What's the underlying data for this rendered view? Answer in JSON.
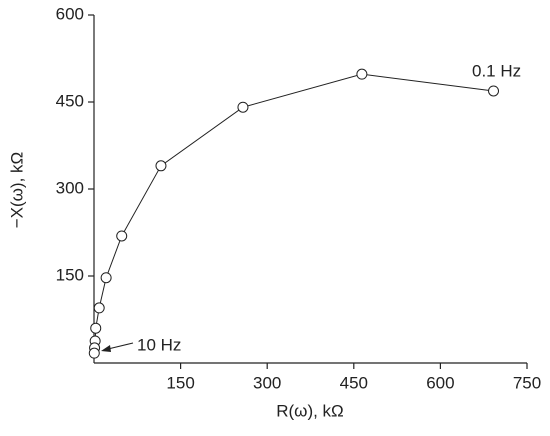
{
  "chart_data": {
    "type": "scatter-line",
    "x_label": "R(ω), kΩ",
    "y_label": "−X(ω), kΩ",
    "x": [
      692,
      464,
      258,
      116,
      48,
      21,
      9,
      3,
      2,
      1,
      0.5
    ],
    "values": [
      469,
      498,
      441,
      340,
      219,
      147,
      95,
      60,
      38,
      26,
      17
    ],
    "color": "#222222",
    "xlim": [
      0,
      750
    ],
    "ylim": [
      0,
      600
    ],
    "xticks": [
      150,
      300,
      450,
      600,
      750
    ],
    "yticks": [
      150,
      300,
      450,
      600
    ],
    "annotations": [
      "0.1 Hz",
      "10 Hz"
    ]
  }
}
